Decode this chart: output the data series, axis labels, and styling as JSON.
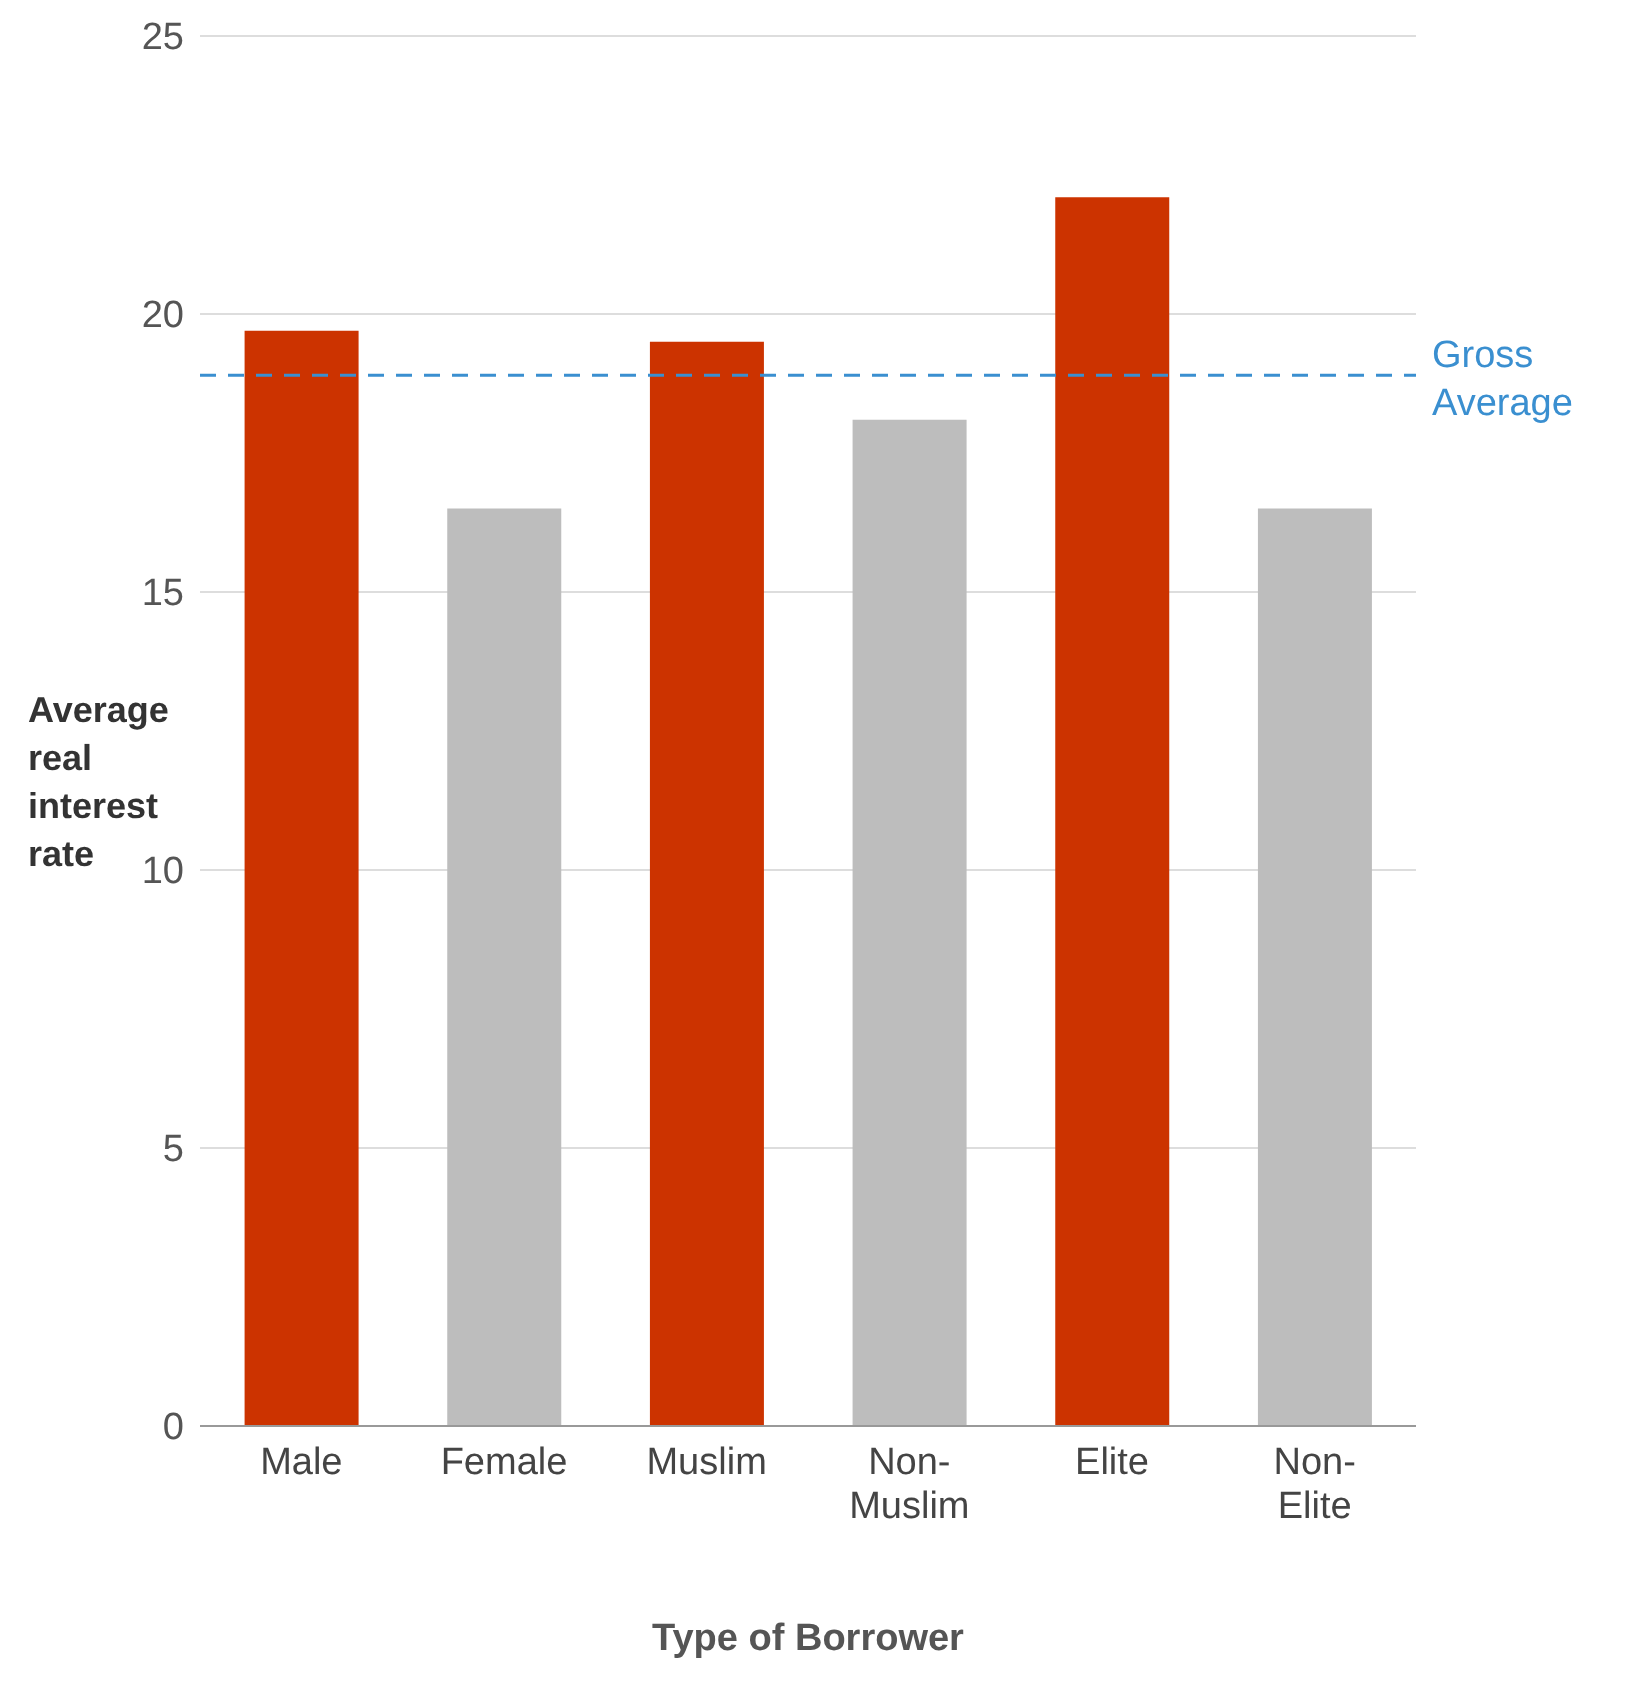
{
  "chart_data": {
    "type": "bar",
    "xlabel": "Type of Borrower",
    "ylabel": "Average real interest rate",
    "categories": [
      "Male",
      "Female",
      "Muslim",
      "Non-Muslim",
      "Elite",
      "Non-Elite"
    ],
    "values": [
      19.7,
      16.5,
      19.5,
      18.1,
      22.1,
      16.5
    ],
    "colors": [
      "#cc3300",
      "#bdbdbd",
      "#cc3300",
      "#bdbdbd",
      "#cc3300",
      "#bdbdbd"
    ],
    "ylim": [
      0,
      25
    ],
    "yticks": [
      0,
      5,
      10,
      15,
      20,
      25
    ],
    "grid": "y",
    "ref_lines": [
      {
        "axis": "y",
        "value": 18.9,
        "label": "Gross Average",
        "color": "#3a8fd0",
        "line_style": "dashed"
      }
    ]
  }
}
